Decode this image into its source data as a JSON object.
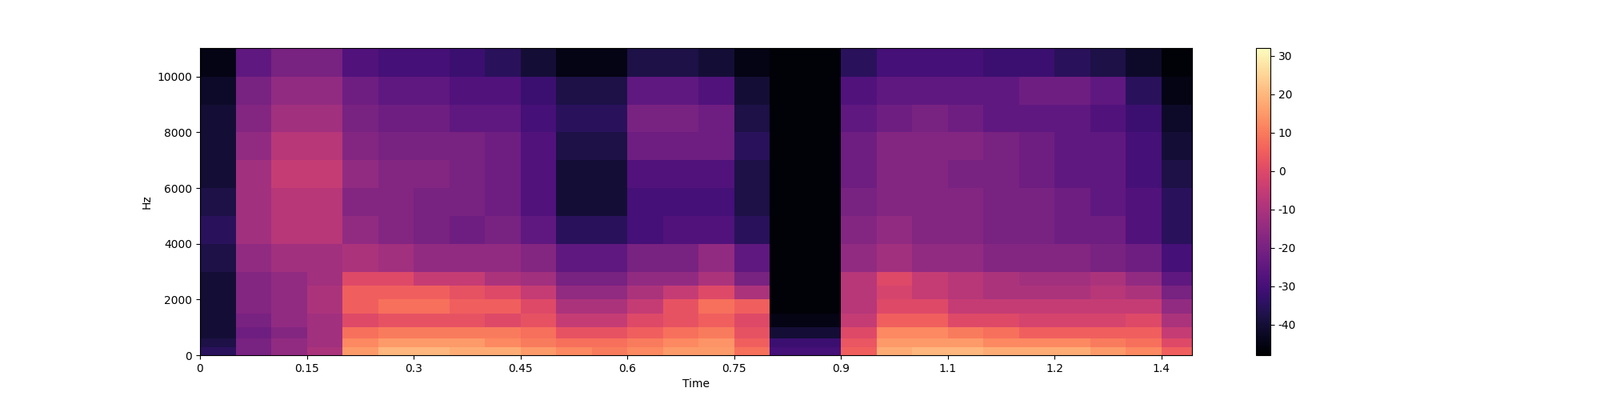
{
  "chart_data": {
    "type": "heatmap",
    "x_label": "Time",
    "y_label": "Hz",
    "color": "magma",
    "x_edges": [
      0,
      0.05,
      0.1,
      0.15,
      0.2,
      0.25,
      0.3,
      0.35,
      0.4,
      0.45,
      0.5,
      0.55,
      0.6,
      0.65,
      0.7,
      0.75,
      0.8,
      0.85,
      0.9,
      0.95,
      1.0,
      1.05,
      1.1,
      1.15,
      1.2,
      1.25,
      1.3,
      1.35,
      1.393
    ],
    "y_edges": [
      0,
      300,
      600,
      1000,
      1500,
      2000,
      2500,
      3000,
      4000,
      5000,
      6000,
      7000,
      8000,
      9000,
      10000,
      11025
    ],
    "cells": [
      [
        -35,
        -20,
        -15,
        -10,
        15,
        20,
        20,
        18,
        18,
        15,
        12,
        10,
        12,
        15,
        15,
        8,
        -30,
        -30,
        5,
        18,
        20,
        20,
        18,
        18,
        18,
        15,
        12,
        5
      ],
      [
        -38,
        -20,
        -15,
        -12,
        12,
        15,
        15,
        15,
        12,
        10,
        8,
        8,
        10,
        12,
        14,
        5,
        -32,
        -32,
        3,
        15,
        15,
        15,
        12,
        12,
        12,
        10,
        8,
        0
      ],
      [
        -40,
        -22,
        -18,
        -12,
        8,
        10,
        10,
        10,
        10,
        8,
        2,
        2,
        5,
        8,
        10,
        2,
        -40,
        -40,
        0,
        12,
        12,
        10,
        8,
        5,
        5,
        5,
        5,
        -5
      ],
      [
        -40,
        -20,
        -15,
        -12,
        0,
        2,
        2,
        2,
        0,
        2,
        -5,
        -5,
        0,
        2,
        5,
        0,
        -45,
        -45,
        -5,
        5,
        5,
        0,
        0,
        -2,
        -2,
        -2,
        0,
        -10
      ],
      [
        -40,
        -18,
        -15,
        -10,
        5,
        8,
        8,
        5,
        5,
        0,
        -10,
        -10,
        -5,
        2,
        8,
        5,
        -47,
        -47,
        -8,
        0,
        0,
        -5,
        -5,
        -5,
        -5,
        -5,
        -5,
        -15
      ],
      [
        -40,
        -18,
        -15,
        -10,
        5,
        5,
        5,
        2,
        0,
        -5,
        -15,
        -15,
        -10,
        -5,
        0,
        -10,
        -47,
        -47,
        -8,
        -2,
        -5,
        -8,
        -10,
        -10,
        -10,
        -8,
        -10,
        -20
      ],
      [
        -40,
        -18,
        -15,
        -12,
        0,
        0,
        -5,
        -5,
        -10,
        -12,
        -20,
        -20,
        -15,
        -15,
        -10,
        -20,
        -47,
        -47,
        -8,
        0,
        -5,
        -8,
        -10,
        -12,
        -12,
        -10,
        -15,
        -25
      ],
      [
        -38,
        -15,
        -12,
        -12,
        -10,
        -12,
        -15,
        -15,
        -15,
        -18,
        -25,
        -25,
        -20,
        -20,
        -15,
        -25,
        -47,
        -47,
        -15,
        -12,
        -15,
        -15,
        -18,
        -18,
        -18,
        -20,
        -22,
        -30
      ],
      [
        -35,
        -12,
        -8,
        -8,
        -15,
        -18,
        -20,
        -22,
        -20,
        -25,
        -35,
        -35,
        -30,
        -28,
        -28,
        -35,
        -47,
        -47,
        -18,
        -15,
        -18,
        -18,
        -20,
        -20,
        -22,
        -22,
        -28,
        -35
      ],
      [
        -38,
        -12,
        -8,
        -8,
        -18,
        -18,
        -20,
        -20,
        -22,
        -28,
        -40,
        -40,
        -30,
        -30,
        -30,
        -38,
        -47,
        -47,
        -20,
        -18,
        -18,
        -18,
        -20,
        -20,
        -22,
        -25,
        -28,
        -35
      ],
      [
        -40,
        -12,
        -5,
        -5,
        -15,
        -18,
        -18,
        -20,
        -22,
        -28,
        -40,
        -40,
        -28,
        -28,
        -28,
        -38,
        -47,
        -47,
        -22,
        -18,
        -18,
        -20,
        -20,
        -22,
        -25,
        -25,
        -30,
        -38
      ],
      [
        -40,
        -15,
        -8,
        -8,
        -18,
        -20,
        -20,
        -20,
        -22,
        -28,
        -38,
        -38,
        -22,
        -22,
        -22,
        -35,
        -47,
        -47,
        -22,
        -18,
        -18,
        -18,
        -20,
        -22,
        -25,
        -25,
        -30,
        -40
      ],
      [
        -40,
        -18,
        -12,
        -12,
        -20,
        -22,
        -22,
        -25,
        -25,
        -30,
        -35,
        -35,
        -20,
        -20,
        -22,
        -38,
        -47,
        -47,
        -25,
        -22,
        -20,
        -22,
        -25,
        -25,
        -25,
        -28,
        -32,
        -42
      ],
      [
        -42,
        -20,
        -15,
        -15,
        -22,
        -25,
        -25,
        -28,
        -28,
        -32,
        -38,
        -38,
        -25,
        -25,
        -28,
        -40,
        -47,
        -47,
        -28,
        -25,
        -25,
        -25,
        -25,
        -22,
        -22,
        -25,
        -35,
        -45
      ],
      [
        -45,
        -25,
        -20,
        -20,
        -28,
        -30,
        -30,
        -32,
        -35,
        -40,
        -45,
        -45,
        -38,
        -38,
        -40,
        -45,
        -47,
        -47,
        -35,
        -30,
        -30,
        -30,
        -32,
        -32,
        -35,
        -38,
        -42,
        -47
      ]
    ],
    "xlim": [
      0,
      1.393
    ],
    "xticks": [
      0,
      0.15,
      0.3,
      0.45,
      0.6,
      0.75,
      0.9,
      {
        "value": 1.05,
        "label": "1.1"
      },
      1.2,
      {
        "value": 1.35,
        "label": "1.4"
      }
    ],
    "ylim": [
      0,
      11025
    ],
    "yticks": [
      0,
      2000,
      4000,
      6000,
      8000,
      10000
    ],
    "colorbar_range": [
      -48,
      32
    ],
    "colorbar_ticks": [
      -40,
      -30,
      -20,
      -10,
      0,
      10,
      20,
      30
    ]
  }
}
